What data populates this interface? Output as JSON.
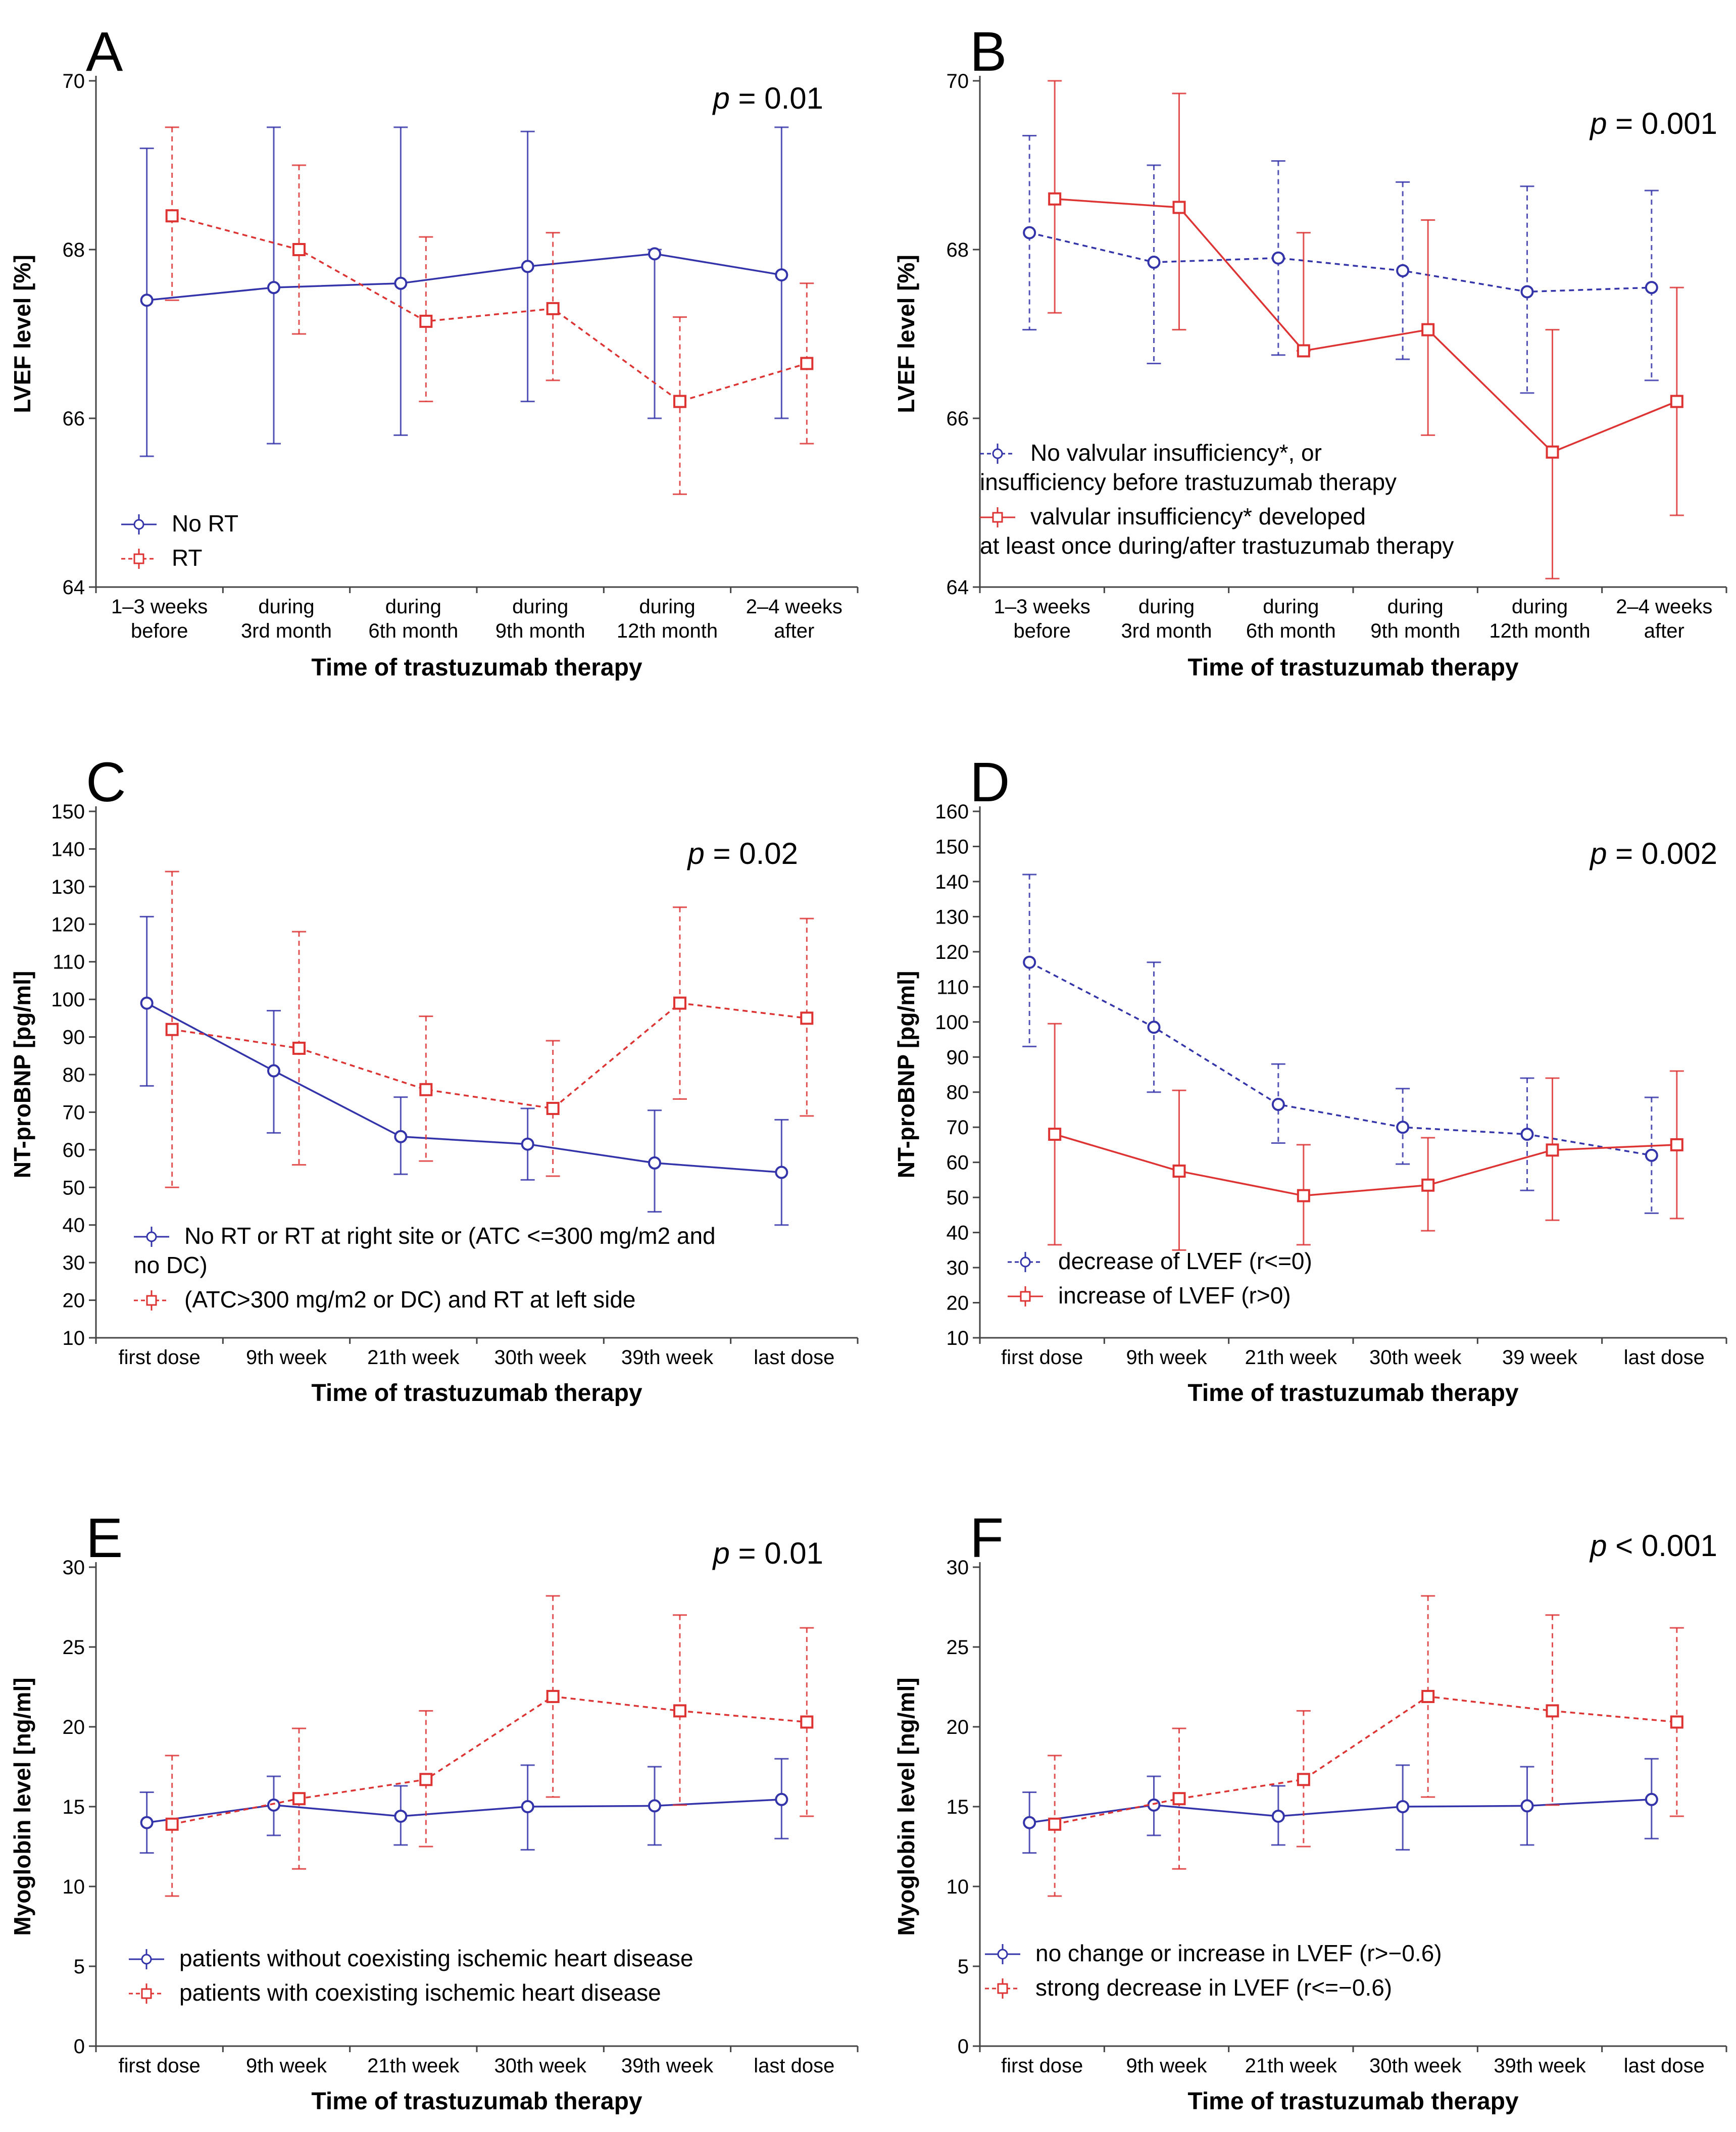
{
  "colors": {
    "blue": "#3333aa",
    "red": "#dd3333",
    "axis": "#444444"
  },
  "chart_data": [
    {
      "panel": "A",
      "type": "line",
      "p_label": "p",
      "p_text": " = 0.01",
      "ylabel": "LVEF level [%]",
      "xlabel": "Time of trastuzumab therapy",
      "ylim": [
        64,
        70
      ],
      "yticks": [
        64,
        66,
        68,
        70
      ],
      "categories": [
        [
          "1–3  weeks",
          "before"
        ],
        [
          "during",
          "3rd month"
        ],
        [
          "during",
          "6th month"
        ],
        [
          "during",
          "9th month"
        ],
        [
          "during",
          "12th month"
        ],
        [
          "2–4 weeks",
          "after"
        ]
      ],
      "legend": [
        [
          "No RT"
        ],
        [
          "RT"
        ]
      ],
      "series": [
        {
          "name": "No RT",
          "color": "blue",
          "marker": "circle",
          "dash": "solid",
          "values": [
            67.4,
            67.55,
            67.6,
            67.8,
            67.95,
            67.7
          ],
          "lower": [
            65.55,
            65.7,
            65.8,
            66.2,
            66.0,
            66.0
          ],
          "upper": [
            69.2,
            69.45,
            69.45,
            69.4,
            68.0,
            69.45
          ]
        },
        {
          "name": "RT",
          "color": "red",
          "marker": "square",
          "dash": "dashed",
          "values": [
            68.4,
            68.0,
            67.15,
            67.3,
            66.2,
            66.65
          ],
          "lower": [
            67.4,
            67.0,
            66.2,
            66.45,
            65.1,
            65.7
          ],
          "upper": [
            69.45,
            69.0,
            68.15,
            68.2,
            67.2,
            67.6
          ]
        }
      ]
    },
    {
      "panel": "B",
      "type": "line",
      "p_label": "p",
      "p_text": " = 0.001",
      "ylabel": "LVEF level [%]",
      "xlabel": "Time of trastuzumab therapy",
      "ylim": [
        64,
        70
      ],
      "yticks": [
        64,
        66,
        68,
        70
      ],
      "categories": [
        [
          "1–3 weeks",
          "before"
        ],
        [
          "during",
          "3rd month"
        ],
        [
          "during",
          "6th month"
        ],
        [
          "during",
          "9th month"
        ],
        [
          "during",
          "12th month"
        ],
        [
          "2–4 weeks",
          "after"
        ]
      ],
      "legend": [
        [
          "No valvular insufficiency*, or",
          "insufficiency before trastuzumab therapy"
        ],
        [
          "valvular insufficiency* developed",
          "at least once during/after trastuzumab therapy"
        ]
      ],
      "series": [
        {
          "name": "No valvular insufficiency*, or insufficiency before trastuzumab therapy",
          "color": "blue",
          "marker": "circle",
          "dash": "dashed",
          "values": [
            68.2,
            67.85,
            67.9,
            67.75,
            67.5,
            67.55
          ],
          "lower": [
            67.05,
            66.65,
            66.75,
            66.7,
            66.3,
            66.45
          ],
          "upper": [
            69.35,
            69.0,
            69.05,
            68.8,
            68.75,
            68.7
          ]
        },
        {
          "name": "valvular insufficiency* developed at least once during/after trastuzumab therapy",
          "color": "red",
          "marker": "square",
          "dash": "solid",
          "values": [
            68.6,
            68.5,
            66.8,
            67.05,
            65.6,
            66.2
          ],
          "lower": [
            67.25,
            67.05,
            66.8,
            65.8,
            64.1,
            64.85
          ],
          "upper": [
            70.0,
            69.85,
            68.2,
            68.35,
            67.05,
            67.55
          ]
        }
      ]
    },
    {
      "panel": "C",
      "type": "line",
      "p_label": "p",
      "p_text": " = 0.02",
      "ylabel": "NT-proBNP [pg/ml]",
      "xlabel": "Time of trastuzumab therapy",
      "ylim": [
        10,
        150
      ],
      "yticks": [
        10,
        20,
        30,
        40,
        50,
        60,
        70,
        80,
        90,
        100,
        110,
        120,
        130,
        140,
        150
      ],
      "categories": [
        [
          "first dose"
        ],
        [
          "9th week"
        ],
        [
          "21th week"
        ],
        [
          "30th week"
        ],
        [
          "39th week"
        ],
        [
          "last dose"
        ]
      ],
      "legend": [
        [
          "No RT or RT at right site or (ATC <=300  mg/m2 and",
          "no DC)"
        ],
        [
          "(ATC>300 mg/m2 or DC) and RT at left side"
        ]
      ],
      "series": [
        {
          "name": "No RT or RT at right site or (ATC <=300 mg/m2 and no DC)",
          "color": "blue",
          "marker": "circle",
          "dash": "solid",
          "values": [
            99,
            81,
            63.5,
            61.5,
            56.5,
            54
          ],
          "lower": [
            77,
            64.5,
            53.5,
            52,
            43.5,
            40
          ],
          "upper": [
            122,
            97,
            74,
            71,
            70.5,
            68
          ]
        },
        {
          "name": "(ATC>300 mg/m2 or DC) and RT at left side",
          "color": "red",
          "marker": "square",
          "dash": "dashed",
          "values": [
            92,
            87,
            76,
            71,
            99,
            95
          ],
          "lower": [
            50,
            56,
            57,
            53,
            73.5,
            69
          ],
          "upper": [
            134,
            118,
            95.5,
            89,
            124.5,
            121.5
          ]
        }
      ]
    },
    {
      "panel": "D",
      "type": "line",
      "p_label": "p",
      "p_text": " = 0.002",
      "ylabel": "NT-proBNP [pg/ml]",
      "xlabel": "Time of trastuzumab therapy",
      "ylim": [
        10,
        160
      ],
      "yticks": [
        10,
        20,
        30,
        40,
        50,
        60,
        70,
        80,
        90,
        100,
        110,
        120,
        130,
        140,
        150,
        160
      ],
      "categories": [
        [
          "first dose"
        ],
        [
          "9th week"
        ],
        [
          "21th week"
        ],
        [
          "30th week"
        ],
        [
          "39 week"
        ],
        [
          "last dose"
        ]
      ],
      "legend": [
        [
          "decrease of LVEF (r<=0)"
        ],
        [
          "increase of LVEF (r>0)"
        ]
      ],
      "series": [
        {
          "name": "decrease of LVEF (r<=0)",
          "color": "blue",
          "marker": "circle",
          "dash": "dashed",
          "values": [
            117,
            98.5,
            76.5,
            70,
            68,
            62
          ],
          "lower": [
            93,
            80,
            65.5,
            59.5,
            52,
            45.5
          ],
          "upper": [
            142,
            117,
            88,
            81,
            84,
            78.5
          ]
        },
        {
          "name": "increase of LVEF (r>0)",
          "color": "red",
          "marker": "square",
          "dash": "solid",
          "values": [
            68,
            57.5,
            50.5,
            53.5,
            63.5,
            65
          ],
          "lower": [
            36.5,
            35,
            36.5,
            40.5,
            43.5,
            44
          ],
          "upper": [
            99.5,
            80.5,
            65,
            67,
            84,
            86
          ]
        }
      ]
    },
    {
      "panel": "E",
      "type": "line",
      "p_label": "p",
      "p_text": " = 0.01",
      "ylabel": "Myoglobin level [ng/ml]",
      "xlabel": "Time of trastuzumab therapy",
      "ylim": [
        0,
        30
      ],
      "yticks": [
        0,
        5,
        10,
        15,
        20,
        25,
        30
      ],
      "categories": [
        [
          "first dose"
        ],
        [
          "9th week"
        ],
        [
          "21th week"
        ],
        [
          "30th week"
        ],
        [
          "39th week"
        ],
        [
          "last dose"
        ]
      ],
      "legend": [
        [
          "patients without coexisting ischemic heart disease"
        ],
        [
          "patients with coexisting ischemic heart disease"
        ]
      ],
      "series": [
        {
          "name": "patients without coexisting ischemic heart disease",
          "color": "blue",
          "marker": "circle",
          "dash": "solid",
          "values": [
            14,
            15.1,
            14.4,
            15,
            15.05,
            15.45
          ],
          "lower": [
            12.1,
            13.2,
            12.6,
            12.3,
            12.6,
            13
          ],
          "upper": [
            15.9,
            16.9,
            16.3,
            17.6,
            17.5,
            18
          ]
        },
        {
          "name": "patients with coexisting ischemic heart disease",
          "color": "red",
          "marker": "square",
          "dash": "dashed",
          "values": [
            13.9,
            15.5,
            16.7,
            21.9,
            21,
            20.3
          ],
          "lower": [
            9.4,
            11.1,
            12.5,
            15.6,
            15.1,
            14.4
          ],
          "upper": [
            18.2,
            19.9,
            21,
            28.2,
            27,
            26.2
          ]
        }
      ]
    },
    {
      "panel": "F",
      "type": "line",
      "p_label": "p",
      "p_text": " < 0.001",
      "ylabel": "Myoglobin level [ng/ml]",
      "xlabel": "Time of trastuzumab therapy",
      "ylim": [
        0,
        30
      ],
      "yticks": [
        0,
        5,
        10,
        15,
        20,
        25,
        30
      ],
      "categories": [
        [
          "first dose"
        ],
        [
          "9th week"
        ],
        [
          "21th week"
        ],
        [
          "30th week"
        ],
        [
          "39th week"
        ],
        [
          "last dose"
        ]
      ],
      "legend": [
        [
          "no change or increase in LVEF (r>−0.6)"
        ],
        [
          "strong decrease in LVEF (r<=−0.6)"
        ]
      ],
      "series": [
        {
          "name": "no change or increase in LVEF (r>−0.6)",
          "color": "blue",
          "marker": "circle",
          "dash": "solid",
          "values": [
            14,
            15.1,
            14.4,
            15,
            15.05,
            15.45
          ],
          "lower": [
            12.1,
            13.2,
            12.6,
            12.3,
            12.6,
            13
          ],
          "upper": [
            15.9,
            16.9,
            16.3,
            17.6,
            17.5,
            18
          ]
        },
        {
          "name": "strong decrease in LVEF (r<=−0.6)",
          "color": "red",
          "marker": "square",
          "dash": "dashed",
          "values": [
            13.9,
            15.5,
            16.7,
            21.9,
            21,
            20.3
          ],
          "lower": [
            9.4,
            11.1,
            12.5,
            15.6,
            15.1,
            14.4
          ],
          "upper": [
            18.2,
            19.9,
            21,
            28.2,
            27,
            26.2
          ]
        }
      ]
    }
  ]
}
